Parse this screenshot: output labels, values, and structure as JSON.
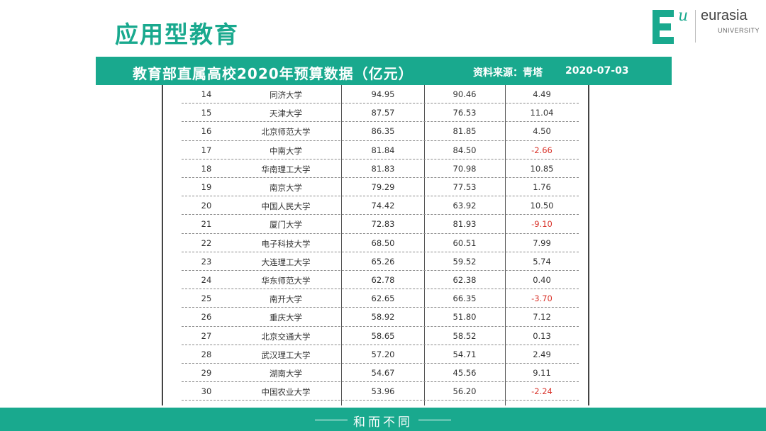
{
  "slide": {
    "title": "应用型教育"
  },
  "logo": {
    "mark_letter": "E",
    "mark_superscript": "u",
    "name": "eurasia",
    "sub": "UNIVERSITY"
  },
  "banner": {
    "title": "教育部直属高校2020年预算数据（亿元）",
    "source": "资料来源：青塔",
    "date": "2020-07-03"
  },
  "table": {
    "rows": [
      {
        "rank": "14",
        "name": "同济大学",
        "b2020": "94.95",
        "b2019": "90.46",
        "diff": "4.49",
        "negative": false
      },
      {
        "rank": "15",
        "name": "天津大学",
        "b2020": "87.57",
        "b2019": "76.53",
        "diff": "11.04",
        "negative": false
      },
      {
        "rank": "16",
        "name": "北京师范大学",
        "b2020": "86.35",
        "b2019": "81.85",
        "diff": "4.50",
        "negative": false
      },
      {
        "rank": "17",
        "name": "中南大学",
        "b2020": "81.84",
        "b2019": "84.50",
        "diff": "-2.66",
        "negative": true
      },
      {
        "rank": "18",
        "name": "华南理工大学",
        "b2020": "81.83",
        "b2019": "70.98",
        "diff": "10.85",
        "negative": false
      },
      {
        "rank": "19",
        "name": "南京大学",
        "b2020": "79.29",
        "b2019": "77.53",
        "diff": "1.76",
        "negative": false
      },
      {
        "rank": "20",
        "name": "中国人民大学",
        "b2020": "74.42",
        "b2019": "63.92",
        "diff": "10.50",
        "negative": false
      },
      {
        "rank": "21",
        "name": "厦门大学",
        "b2020": "72.83",
        "b2019": "81.93",
        "diff": "-9.10",
        "negative": true
      },
      {
        "rank": "22",
        "name": "电子科技大学",
        "b2020": "68.50",
        "b2019": "60.51",
        "diff": "7.99",
        "negative": false
      },
      {
        "rank": "23",
        "name": "大连理工大学",
        "b2020": "65.26",
        "b2019": "59.52",
        "diff": "5.74",
        "negative": false
      },
      {
        "rank": "24",
        "name": "华东师范大学",
        "b2020": "62.78",
        "b2019": "62.38",
        "diff": "0.40",
        "negative": false
      },
      {
        "rank": "25",
        "name": "南开大学",
        "b2020": "62.65",
        "b2019": "66.35",
        "diff": "-3.70",
        "negative": true
      },
      {
        "rank": "26",
        "name": "重庆大学",
        "b2020": "58.92",
        "b2019": "51.80",
        "diff": "7.12",
        "negative": false
      },
      {
        "rank": "27",
        "name": "北京交通大学",
        "b2020": "58.65",
        "b2019": "58.52",
        "diff": "0.13",
        "negative": false
      },
      {
        "rank": "28",
        "name": "武汉理工大学",
        "b2020": "57.20",
        "b2019": "54.71",
        "diff": "2.49",
        "negative": false
      },
      {
        "rank": "29",
        "name": "湖南大学",
        "b2020": "54.67",
        "b2019": "45.56",
        "diff": "9.11",
        "negative": false
      },
      {
        "rank": "30",
        "name": "中国农业大学",
        "b2020": "53.96",
        "b2019": "56.20",
        "diff": "-2.24",
        "negative": true
      }
    ]
  },
  "footer": {
    "motto": "和而不同"
  },
  "colors": {
    "accent": "#19a98e",
    "negative": "#d9342b"
  }
}
